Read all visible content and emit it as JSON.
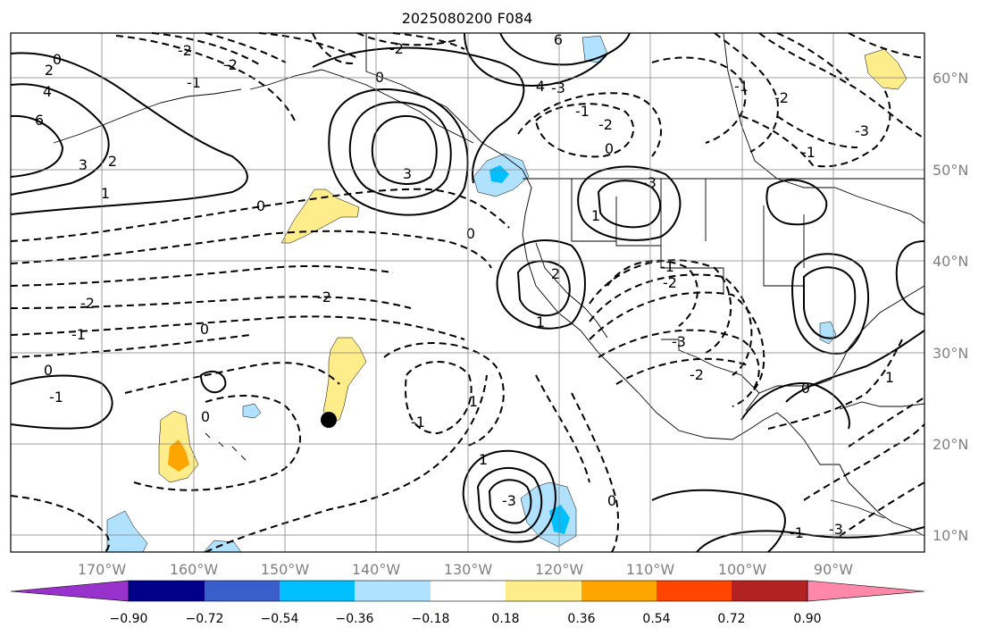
{
  "title": "2025080200 F084",
  "map": {
    "lat_labels": [
      "60°N",
      "50°N",
      "40°N",
      "30°N",
      "20°N",
      "10°N"
    ],
    "lon_labels": [
      "170°W",
      "160°W",
      "150°W",
      "140°W",
      "130°W",
      "120°W",
      "110°W",
      "100°W",
      "90°W"
    ],
    "contour_labels": [
      "0",
      "2",
      "4",
      "6",
      "3",
      "2",
      "1",
      "-2",
      "-2",
      "0",
      "6",
      "-2",
      "-1",
      "4",
      "-2",
      "3",
      "-3",
      "0",
      "-1",
      "1",
      "-3",
      "-3",
      "-1",
      "-1",
      "-2",
      "0",
      "-2",
      "-2",
      "-1",
      "-2",
      "1",
      "0",
      "-1",
      "2",
      "-3",
      "-2",
      "0",
      "-1",
      "0",
      "0",
      "1",
      "-1",
      "-3",
      "1",
      "0",
      "-1",
      "0",
      "1",
      "-3"
    ],
    "marker": "black-dot"
  },
  "colorbar": {
    "tick_labels": [
      "−0.90",
      "−0.72",
      "−0.54",
      "−0.36",
      "−0.18",
      "0.18",
      "0.36",
      "0.54",
      "0.72",
      "0.90"
    ],
    "colors": [
      "#9932cc",
      "#00008b",
      "#3a5fcd",
      "#00bfff",
      "#b0e2ff",
      "#ffffff",
      "#ffec8b",
      "#ffa500",
      "#ff4500",
      "#b22222",
      "#ff88aa"
    ]
  }
}
